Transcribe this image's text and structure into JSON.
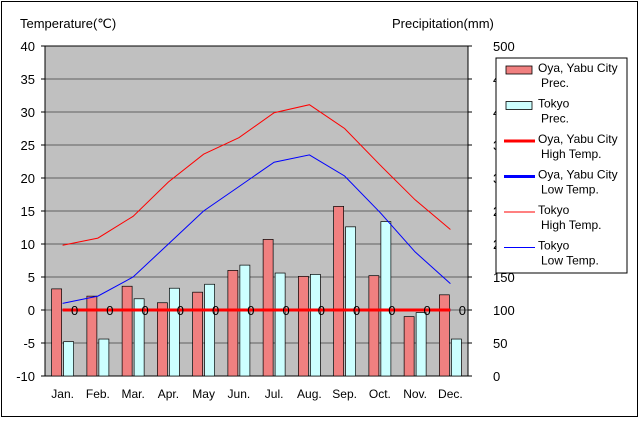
{
  "chart_data": {
    "type": "bar+line",
    "y_left_label": "Temperature(℃)",
    "y_right_label": "Precipitation(mm)",
    "y_left_lim": [
      -10,
      40
    ],
    "y_right_lim": [
      0,
      500
    ],
    "y_left_ticks": [
      40,
      35,
      30,
      25,
      20,
      15,
      10,
      5,
      0,
      -5,
      -10
    ],
    "y_right_ticks": [
      500,
      450,
      400,
      350,
      300,
      250,
      200,
      150,
      100,
      50,
      0
    ],
    "categories": [
      "Jan.",
      "Feb.",
      "Mar.",
      "Apr.",
      "May",
      "Jun.",
      "Jul.",
      "Aug.",
      "Sep.",
      "Oct.",
      "Nov.",
      "Dec."
    ],
    "grid": "horizontal",
    "legend_position": "right",
    "precip_series": [
      {
        "legend_line1": "Oya, Yabu City",
        "legend_line2": "Prec.",
        "color": "#f08080",
        "values": [
          132,
          121,
          136,
          111,
          127,
          160,
          207,
          151,
          257,
          152,
          90,
          123
        ]
      },
      {
        "legend_line1": "Tokyo",
        "legend_line2": "Prec.",
        "color": "#ccffff",
        "values": [
          52,
          56,
          117,
          133,
          139,
          168,
          156,
          154,
          226,
          234,
          96,
          56
        ]
      }
    ],
    "temp_series": [
      {
        "legend_line1": "Oya, Yabu City",
        "legend_line2": "High Temp.",
        "color": "#ff0000",
        "width": 3,
        "values": [
          0,
          0,
          0,
          0,
          0,
          0,
          0,
          0,
          0,
          0,
          0,
          0
        ]
      },
      {
        "legend_line1": "Oya, Yabu City",
        "legend_line2": "Low Temp.",
        "color": "#0000ff",
        "width": 3,
        "values": [
          0,
          0,
          0,
          0,
          0,
          0,
          0,
          0,
          0,
          0,
          0,
          0
        ]
      },
      {
        "legend_line1": "Tokyo",
        "legend_line2": "High Temp.",
        "color": "#ff0000",
        "width": 1,
        "values": [
          9.8,
          10.9,
          14.2,
          19.4,
          23.6,
          26.1,
          29.9,
          31.1,
          27.5,
          22.0,
          16.7,
          12.2
        ]
      },
      {
        "legend_line1": "Tokyo",
        "legend_line2": "Low Temp.",
        "color": "#0000ff",
        "width": 1,
        "values": [
          1.0,
          2.1,
          5.0,
          10.0,
          15.0,
          18.7,
          22.4,
          23.5,
          20.3,
          14.8,
          8.8,
          4.0
        ]
      }
    ],
    "annotations": [
      "0",
      "0",
      "0",
      "0",
      "0",
      "0",
      "0",
      "0",
      "0",
      "0",
      "0",
      "0"
    ]
  }
}
